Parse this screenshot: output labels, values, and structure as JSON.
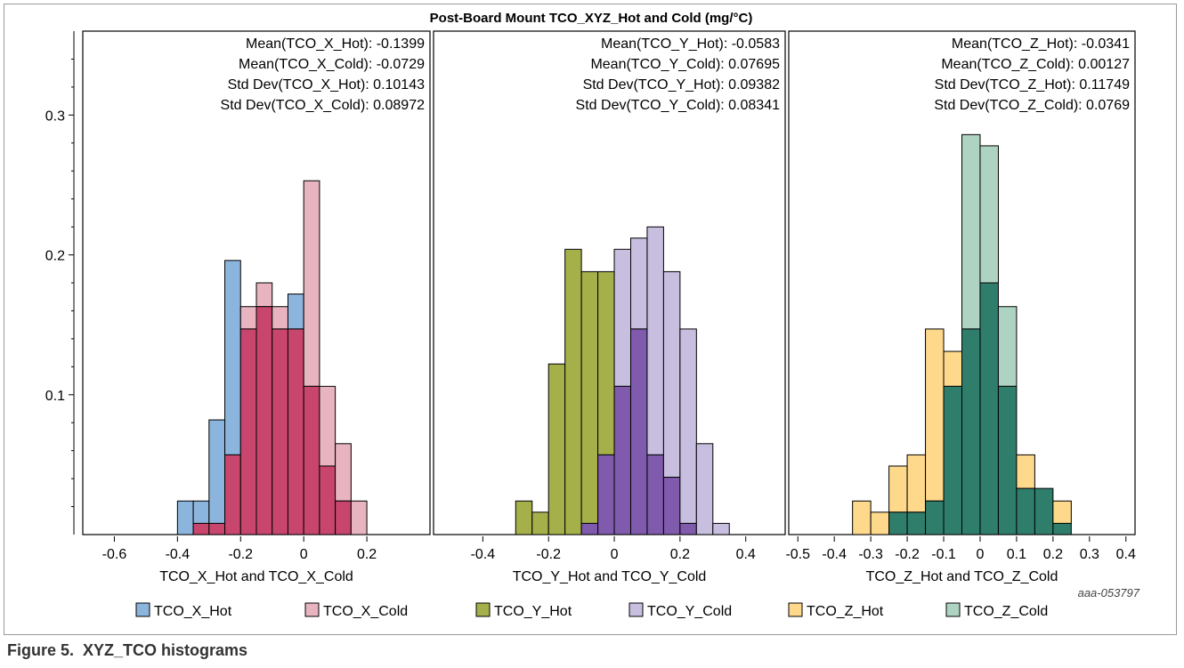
{
  "caption": {
    "figure_label": "Figure 5.",
    "title": "XYZ_TCO histograms"
  },
  "chart_title": "Post-Board Mount TCO_XYZ_Hot and Cold (mg/°C)",
  "watermark": "aaa-053797",
  "chart_data": {
    "type": "bar",
    "title": "Post-Board Mount TCO_XYZ_Hot and Cold (mg/°C)",
    "ylim": [
      0,
      0.36
    ],
    "yticks": [
      0.1,
      0.2,
      0.3
    ],
    "grid": false,
    "legend_position": "bottom",
    "legend": [
      {
        "name": "TCO_X_Hot",
        "color": "#8cb5de"
      },
      {
        "name": "TCO_X_Cold",
        "color": "#e8b4c0"
      },
      {
        "name": "TCO_Y_Hot",
        "color": "#a5b04a"
      },
      {
        "name": "TCO_Y_Cold",
        "color": "#c8bfe0"
      },
      {
        "name": "TCO_Z_Hot",
        "color": "#fed88b"
      },
      {
        "name": "TCO_Z_Cold",
        "color": "#afd3c2"
      }
    ],
    "overlap_colors": {
      "X": "#c8466e",
      "Y": "#7f5aad",
      "Z": "#2f7d6b"
    },
    "panels": [
      {
        "id": "X",
        "xlabel": "TCO_X_Hot and TCO_X_Cold",
        "xlim": [
          -0.7,
          0.4
        ],
        "xticks": [
          -0.6,
          -0.4,
          -0.2,
          0,
          0.2
        ],
        "bin_width": 0.05,
        "stats": [
          "Mean(TCO_X_Hot): -0.1399",
          "Mean(TCO_X_Cold): -0.0729",
          "Std Dev(TCO_X_Hot): 0.10143",
          "Std Dev(TCO_X_Cold): 0.08972"
        ],
        "series": [
          {
            "name": "TCO_X_Hot",
            "bins": [
              [
                -0.4,
                0.024
              ],
              [
                -0.35,
                0.024
              ],
              [
                -0.3,
                0.082
              ],
              [
                -0.25,
                0.196
              ],
              [
                -0.2,
                0.147
              ],
              [
                -0.15,
                0.163
              ],
              [
                -0.1,
                0.147
              ],
              [
                -0.05,
                0.172
              ],
              [
                0.0,
                0.106
              ],
              [
                0.05,
                0.049
              ],
              [
                0.1,
                0.024
              ]
            ]
          },
          {
            "name": "TCO_X_Cold",
            "bins": [
              [
                -0.35,
                0.008
              ],
              [
                -0.3,
                0.008
              ],
              [
                -0.25,
                0.057
              ],
              [
                -0.2,
                0.163
              ],
              [
                -0.15,
                0.18
              ],
              [
                -0.1,
                0.163
              ],
              [
                -0.05,
                0.147
              ],
              [
                0.0,
                0.253
              ],
              [
                0.05,
                0.106
              ],
              [
                0.1,
                0.065
              ],
              [
                0.15,
                0.024
              ]
            ]
          }
        ]
      },
      {
        "id": "Y",
        "xlabel": "TCO_Y_Hot and TCO_Y_Cold",
        "xlim": [
          -0.55,
          0.52
        ],
        "xticks": [
          -0.4,
          -0.2,
          0,
          0.2,
          0.4
        ],
        "bin_width": 0.05,
        "stats": [
          "Mean(TCO_Y_Hot): -0.0583",
          "Mean(TCO_Y_Cold): 0.07695",
          "Std Dev(TCO_Y_Hot): 0.09382",
          "Std Dev(TCO_Y_Cold): 0.08341"
        ],
        "series": [
          {
            "name": "TCO_Y_Hot",
            "bins": [
              [
                -0.3,
                0.024
              ],
              [
                -0.25,
                0.016
              ],
              [
                -0.2,
                0.122
              ],
              [
                -0.15,
                0.204
              ],
              [
                -0.1,
                0.188
              ],
              [
                -0.05,
                0.188
              ],
              [
                0.0,
                0.106
              ],
              [
                0.05,
                0.147
              ],
              [
                0.1,
                0.057
              ],
              [
                0.15,
                0.041
              ],
              [
                0.2,
                0.008
              ]
            ]
          },
          {
            "name": "TCO_Y_Cold",
            "bins": [
              [
                -0.1,
                0.008
              ],
              [
                -0.05,
                0.057
              ],
              [
                0.0,
                0.204
              ],
              [
                0.05,
                0.212
              ],
              [
                0.1,
                0.22
              ],
              [
                0.15,
                0.188
              ],
              [
                0.2,
                0.147
              ],
              [
                0.25,
                0.065
              ],
              [
                0.3,
                0.008
              ]
            ]
          }
        ]
      },
      {
        "id": "Z",
        "xlabel": "TCO_Z_Hot and TCO_Z_Cold",
        "xlim": [
          -0.525,
          0.425
        ],
        "xticks": [
          -0.5,
          -0.4,
          -0.3,
          -0.2,
          -0.1,
          0,
          0.1,
          0.2,
          0.3,
          0.4
        ],
        "bin_width": 0.05,
        "stats": [
          "Mean(TCO_Z_Hot): -0.0341",
          "Mean(TCO_Z_Cold): 0.00127",
          "Std Dev(TCO_Z_Hot): 0.11749",
          "Std Dev(TCO_Z_Cold): 0.0769"
        ],
        "series": [
          {
            "name": "TCO_Z_Hot",
            "bins": [
              [
                -0.35,
                0.024
              ],
              [
                -0.3,
                0.016
              ],
              [
                -0.25,
                0.049
              ],
              [
                -0.2,
                0.057
              ],
              [
                -0.15,
                0.147
              ],
              [
                -0.1,
                0.131
              ],
              [
                -0.05,
                0.147
              ],
              [
                0.0,
                0.18
              ],
              [
                0.05,
                0.106
              ],
              [
                0.1,
                0.057
              ],
              [
                0.15,
                0.033
              ],
              [
                0.2,
                0.024
              ]
            ]
          },
          {
            "name": "TCO_Z_Cold",
            "bins": [
              [
                -0.25,
                0.016
              ],
              [
                -0.2,
                0.016
              ],
              [
                -0.15,
                0.024
              ],
              [
                -0.1,
                0.106
              ],
              [
                -0.05,
                0.286
              ],
              [
                0.0,
                0.278
              ],
              [
                0.05,
                0.163
              ],
              [
                0.1,
                0.033
              ],
              [
                0.15,
                0.033
              ],
              [
                0.2,
                0.008
              ]
            ]
          }
        ]
      }
    ]
  }
}
